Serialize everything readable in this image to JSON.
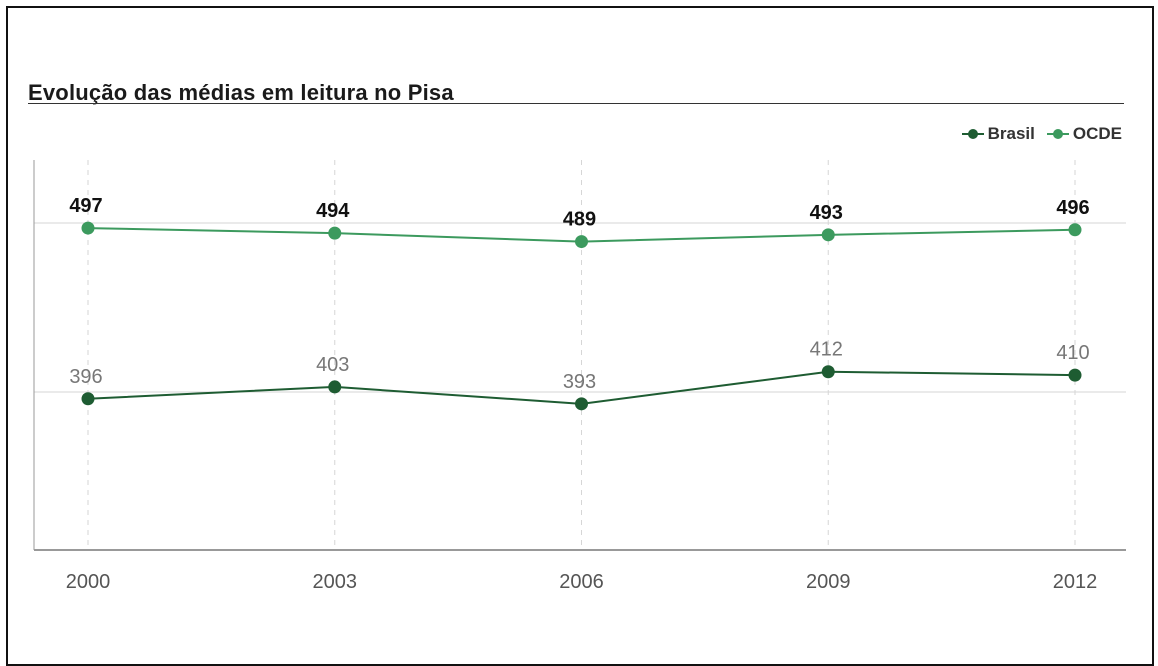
{
  "title": "Evolução das médias em leitura no Pisa",
  "legend": {
    "brasil": "Brasil",
    "ocde": "OCDE"
  },
  "colors": {
    "brasil": "#1e5c32",
    "ocde": "#3c9a5e",
    "ocde_label": "#111111",
    "brasil_label": "#777777",
    "axis": "#999999",
    "grid": "#d6d6d6"
  },
  "chart_data": {
    "type": "line",
    "title": "Evolução das médias em leitura no Pisa",
    "x": [
      "2000",
      "2003",
      "2006",
      "2009",
      "2012"
    ],
    "series": [
      {
        "name": "OCDE",
        "values": [
          497,
          494,
          489,
          493,
          496
        ]
      },
      {
        "name": "Brasil",
        "values": [
          396,
          403,
          393,
          412,
          410
        ]
      }
    ],
    "reference_lines": [
      500,
      400
    ],
    "legend_position": "top-right",
    "grid": "vertical dashed"
  }
}
